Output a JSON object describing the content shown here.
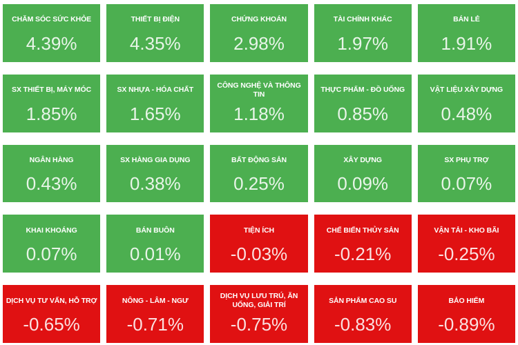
{
  "colors": {
    "positive": "#4caf50",
    "negative": "#e01112",
    "title_text": "#ffffff",
    "value_text": "rgba(255,255,255,0.87)",
    "page_background": "#ffffff"
  },
  "chart_data": {
    "type": "heatmap",
    "title": "Sector percentage change heatmap (Vietnamese stock market)",
    "unit": "%",
    "layout": {
      "columns": 5,
      "rows": 5,
      "order": "row-major, sorted descending by change",
      "positive_color": "#4caf50",
      "negative_color": "#e01112"
    },
    "sectors": [
      {
        "label": "CHĂM SÓC SỨC KHỎE",
        "value": 4.39,
        "display": "4.39%",
        "direction": "up"
      },
      {
        "label": "THIẾT BỊ ĐIỆN",
        "value": 4.35,
        "display": "4.35%",
        "direction": "up"
      },
      {
        "label": "CHỨNG KHOÁN",
        "value": 2.98,
        "display": "2.98%",
        "direction": "up"
      },
      {
        "label": "TÀI CHÍNH KHÁC",
        "value": 1.97,
        "display": "1.97%",
        "direction": "up"
      },
      {
        "label": "BÁN LẺ",
        "value": 1.91,
        "display": "1.91%",
        "direction": "up"
      },
      {
        "label": "SX THIẾT BỊ, MÁY MÓC",
        "value": 1.85,
        "display": "1.85%",
        "direction": "up"
      },
      {
        "label": "SX NHỰA - HÓA CHẤT",
        "value": 1.65,
        "display": "1.65%",
        "direction": "up"
      },
      {
        "label": "CÔNG NGHỆ VÀ THÔNG TIN",
        "value": 1.18,
        "display": "1.18%",
        "direction": "up"
      },
      {
        "label": "THỰC PHẨM - ĐỒ UỐNG",
        "value": 0.85,
        "display": "0.85%",
        "direction": "up"
      },
      {
        "label": "VẬT LIỆU XÂY DỰNG",
        "value": 0.48,
        "display": "0.48%",
        "direction": "up"
      },
      {
        "label": "NGÂN HÀNG",
        "value": 0.43,
        "display": "0.43%",
        "direction": "up"
      },
      {
        "label": "SX HÀNG GIA DỤNG",
        "value": 0.38,
        "display": "0.38%",
        "direction": "up"
      },
      {
        "label": "BẤT ĐỘNG SẢN",
        "value": 0.25,
        "display": "0.25%",
        "direction": "up"
      },
      {
        "label": "XÂY DỰNG",
        "value": 0.09,
        "display": "0.09%",
        "direction": "up"
      },
      {
        "label": "SX PHỤ TRỢ",
        "value": 0.07,
        "display": "0.07%",
        "direction": "up"
      },
      {
        "label": "KHAI KHOÁNG",
        "value": 0.07,
        "display": "0.07%",
        "direction": "up"
      },
      {
        "label": "BÁN BUÔN",
        "value": 0.01,
        "display": "0.01%",
        "direction": "up"
      },
      {
        "label": "TIỆN ÍCH",
        "value": -0.03,
        "display": "-0.03%",
        "direction": "down"
      },
      {
        "label": "CHẾ BIẾN THỦY SẢN",
        "value": -0.21,
        "display": "-0.21%",
        "direction": "down"
      },
      {
        "label": "VẬN TẢI - KHO BÃI",
        "value": -0.25,
        "display": "-0.25%",
        "direction": "down"
      },
      {
        "label": "DỊCH VỤ TƯ VẤN, HỖ TRỢ",
        "value": -0.65,
        "display": "-0.65%",
        "direction": "down"
      },
      {
        "label": "NÔNG - LÂM - NGƯ",
        "value": -0.71,
        "display": "-0.71%",
        "direction": "down"
      },
      {
        "label": "DỊCH VỤ LƯU TRÚ, ĂN UỐNG, GIẢI TRÍ",
        "value": -0.75,
        "display": "-0.75%",
        "direction": "down"
      },
      {
        "label": "SẢN PHẨM CAO SU",
        "value": -0.83,
        "display": "-0.83%",
        "direction": "down"
      },
      {
        "label": "BẢO HIỂM",
        "value": -0.89,
        "display": "-0.89%",
        "direction": "down"
      }
    ]
  }
}
